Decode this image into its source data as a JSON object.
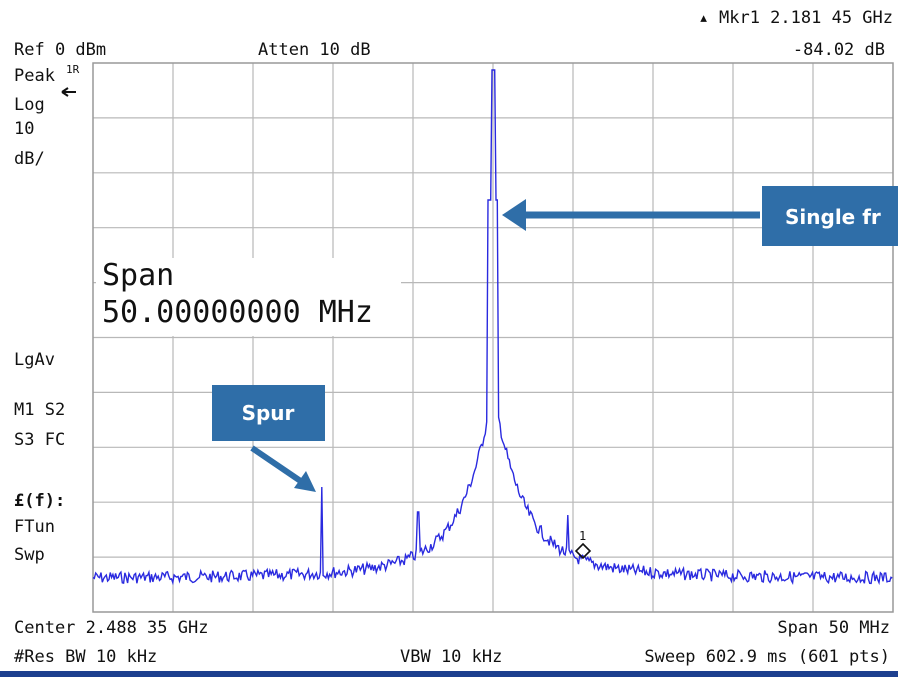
{
  "header": {
    "marker": "▴ Mkr1  2.181 45 GHz",
    "ref": "Ref 0 dBm",
    "atten": "Atten 10 dB",
    "delta": "-84.02 dB"
  },
  "sidebar": {
    "peak": "Peak",
    "trace": "1R",
    "log": "Log",
    "scale": "10",
    "unit": "dB/",
    "avg": "LgAv",
    "m1": "M1  S2",
    "s3": "S3  FC",
    "func": "£(f):",
    "ftun": "FTun",
    "swp": "Swp"
  },
  "overlay": {
    "label": "Span",
    "value": "50.00000000 MHz"
  },
  "marker_label": "1",
  "callouts": {
    "main": "Single fr",
    "spur": "Spur"
  },
  "footer": {
    "center": "Center 2.488 35 GHz",
    "span": "Span 50 MHz",
    "rbw": "#Res BW 10 kHz",
    "vbw": "VBW 10 kHz",
    "sweep": "Sweep 602.9 ms (601 pts)"
  }
}
